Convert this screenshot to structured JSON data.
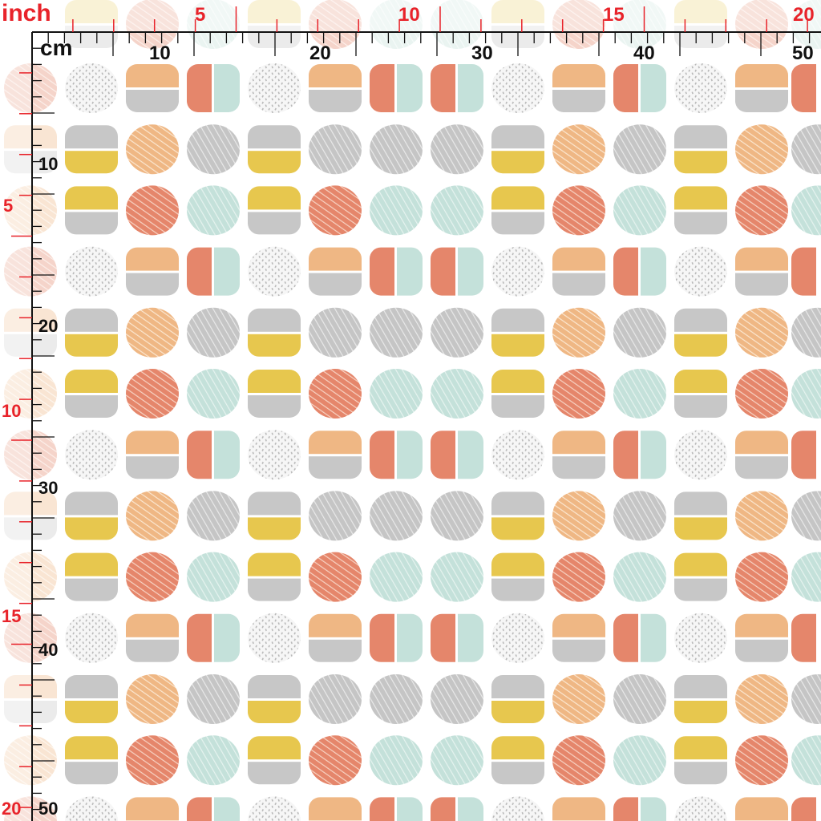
{
  "ruler": {
    "inch_unit": "inch",
    "cm_unit": "cm",
    "inch_top_labels": [
      "5",
      "10",
      "15",
      "20"
    ],
    "cm_top_labels": [
      "10",
      "20",
      "30",
      "40",
      "50"
    ],
    "inch_left_labels": [
      "5",
      "10",
      "15",
      "20"
    ],
    "cm_left_labels": [
      "10",
      "20",
      "30",
      "40",
      "50"
    ]
  },
  "colors": {
    "background": "#ffffff",
    "peach": "#efb784",
    "coral": "#e5866b",
    "mint": "#c4e1da",
    "grey": "#c7c7c7",
    "mustard": "#e7c74e",
    "ruler_red": "#e8232a",
    "ruler_black": "#111111"
  },
  "pattern": {
    "motif_rows": [
      [
        "dots",
        "peach-grey",
        "coral-mint",
        "dots",
        "peach-grey",
        "coral-mint",
        "coral-mint",
        "dots",
        "peach-grey",
        "coral-mint",
        "dots",
        "peach-grey",
        "coral-half"
      ],
      [
        "grey-mustard",
        "peach-stripe",
        "grey-stripe",
        "grey-mustard",
        "grey-stripe",
        "grey-stripe",
        "grey-stripe",
        "grey-mustard",
        "peach-stripe",
        "grey-stripe",
        "grey-mustard",
        "peach-stripe",
        "grey-stripe"
      ],
      [
        "mustard-grey",
        "coral-stripe",
        "mint-stripe",
        "mustard-grey",
        "coral-stripe",
        "mint-stripe",
        "mint-stripe",
        "mustard-grey",
        "coral-stripe",
        "mint-stripe",
        "mustard-grey",
        "coral-stripe",
        "mint-stripe"
      ]
    ]
  }
}
